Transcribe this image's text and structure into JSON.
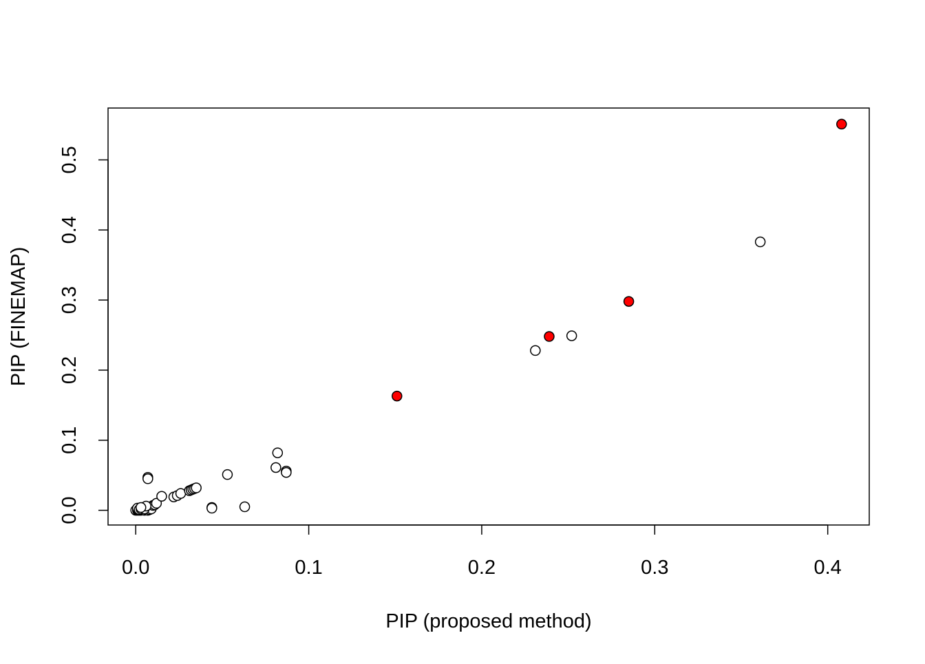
{
  "chart_data": {
    "type": "scatter",
    "title": "",
    "xlabel": "PIP (proposed method)",
    "ylabel": "PIP (FINEMAP)",
    "xlim": [
      -0.016,
      0.424
    ],
    "ylim": [
      -0.021,
      0.574
    ],
    "xticks": [
      0.0,
      0.1,
      0.2,
      0.3,
      0.4
    ],
    "xtick_labels": [
      "0.0",
      "0.1",
      "0.2",
      "0.3",
      "0.4"
    ],
    "yticks": [
      0.0,
      0.1,
      0.2,
      0.3,
      0.4,
      0.5
    ],
    "ytick_labels": [
      "0.0",
      "0.1",
      "0.2",
      "0.3",
      "0.4",
      "0.5"
    ],
    "grid": false,
    "legend": "none",
    "colors": {
      "highlight_fill": "#ff0000",
      "stroke": "#000000",
      "open_fill": "#ffffff"
    },
    "series": [
      {
        "marker": "open-circle",
        "x": [
          0.0,
          0.001,
          0.001,
          0.002,
          0.002,
          0.003,
          0.003,
          0.004,
          0.004,
          0.005,
          0.005,
          0.006,
          0.006,
          0.007,
          0.007,
          0.008,
          0.008,
          0.009,
          0.009,
          0.01,
          0.011,
          0.012,
          0.001,
          0.002,
          0.003,
          0.004,
          0.005,
          0.006,
          0.003,
          0.007,
          0.007,
          0.015,
          0.022,
          0.024,
          0.026,
          0.031,
          0.032,
          0.033,
          0.034,
          0.035,
          0.044,
          0.044,
          0.053,
          0.063,
          0.081,
          0.082,
          0.087,
          0.087,
          0.231,
          0.252,
          0.361
        ],
        "y": [
          0.0,
          0.0,
          0.001,
          0.0,
          0.002,
          0.001,
          0.0,
          0.001,
          0.002,
          0.0,
          0.003,
          0.001,
          0.004,
          0.002,
          0.0,
          0.003,
          0.001,
          0.005,
          0.002,
          0.007,
          0.008,
          0.01,
          0.003,
          0.001,
          0.002,
          0.004,
          0.002,
          0.006,
          0.004,
          0.047,
          0.045,
          0.02,
          0.019,
          0.021,
          0.024,
          0.028,
          0.029,
          0.03,
          0.031,
          0.032,
          0.004,
          0.003,
          0.051,
          0.005,
          0.061,
          0.082,
          0.056,
          0.054,
          0.228,
          0.249,
          0.383
        ]
      },
      {
        "marker": "filled-circle",
        "x": [
          0.151,
          0.239,
          0.285,
          0.408
        ],
        "y": [
          0.163,
          0.248,
          0.298,
          0.551
        ]
      }
    ]
  }
}
